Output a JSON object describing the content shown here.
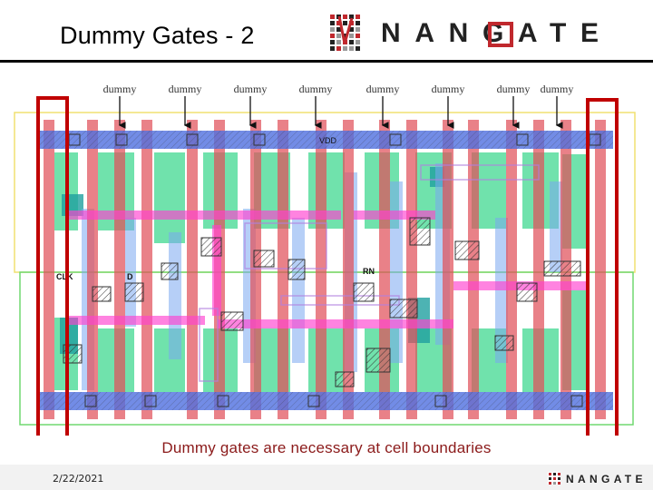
{
  "slide": {
    "title": "Dummy Gates - 2",
    "caption": "Dummy gates are necessary at cell boundaries",
    "date": "2/22/2021"
  },
  "logo": {
    "text": "NANGATE",
    "icon": "nangate-grid-logo-icon"
  },
  "layout": {
    "dummy_labels": [
      "dummy",
      "dummy",
      "dummy",
      "dummy",
      "dummy",
      "dummy",
      "dummy",
      "dummy"
    ],
    "pins": {
      "vdd": "VDD",
      "clk": "CLK",
      "d": "D",
      "rn": "RN"
    }
  },
  "colors": {
    "poly": "#e0505a",
    "metal1": "#4f6fe0",
    "diffusion": "#40d890",
    "metal2": "#ff40d0",
    "highlight": "#c00000",
    "caption": "#8b1a1a"
  }
}
